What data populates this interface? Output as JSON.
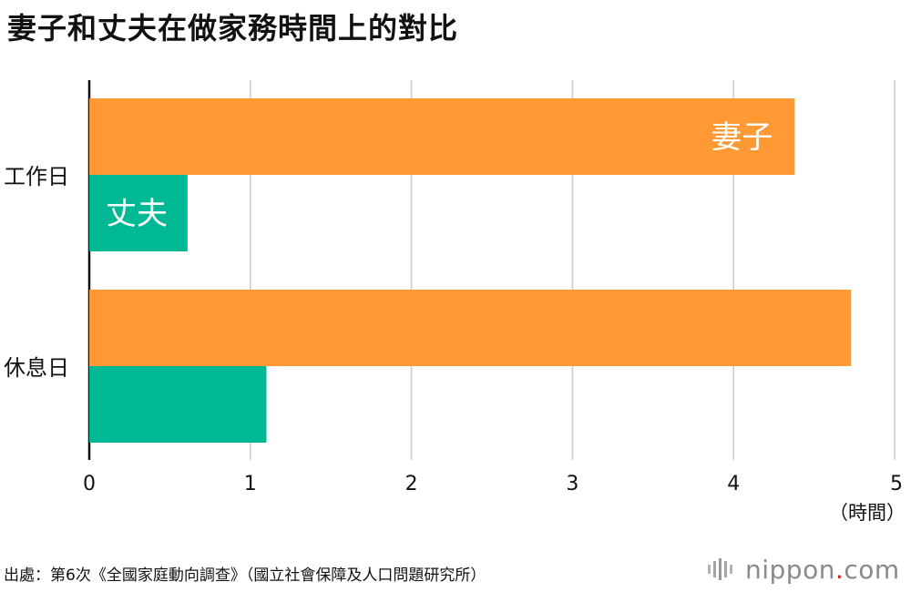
{
  "title": "妻子和丈夫在做家務時間上的對比",
  "source": "出處：第6次《全國家庭動向調查》（國立社會保障及人口問題研究所）",
  "logo": {
    "name": "nippon",
    "dot": ".",
    "tld": "com"
  },
  "colors": {
    "wife": "#ff9933",
    "husband": "#00b894",
    "grid": "#cccccc",
    "axis": "#111111"
  },
  "chart_data": {
    "type": "bar",
    "orientation": "horizontal",
    "categories": [
      "工作日",
      "休息日"
    ],
    "series": [
      {
        "name": "妻子",
        "values": [
          4.38,
          4.73
        ]
      },
      {
        "name": "丈夫",
        "values": [
          0.61,
          1.1
        ]
      }
    ],
    "xlim": [
      0,
      5
    ],
    "xticks": [
      0,
      1,
      2,
      3,
      4,
      5
    ],
    "xunit": "（時間）",
    "grid": true,
    "legend": "inline labels on first category bars"
  }
}
